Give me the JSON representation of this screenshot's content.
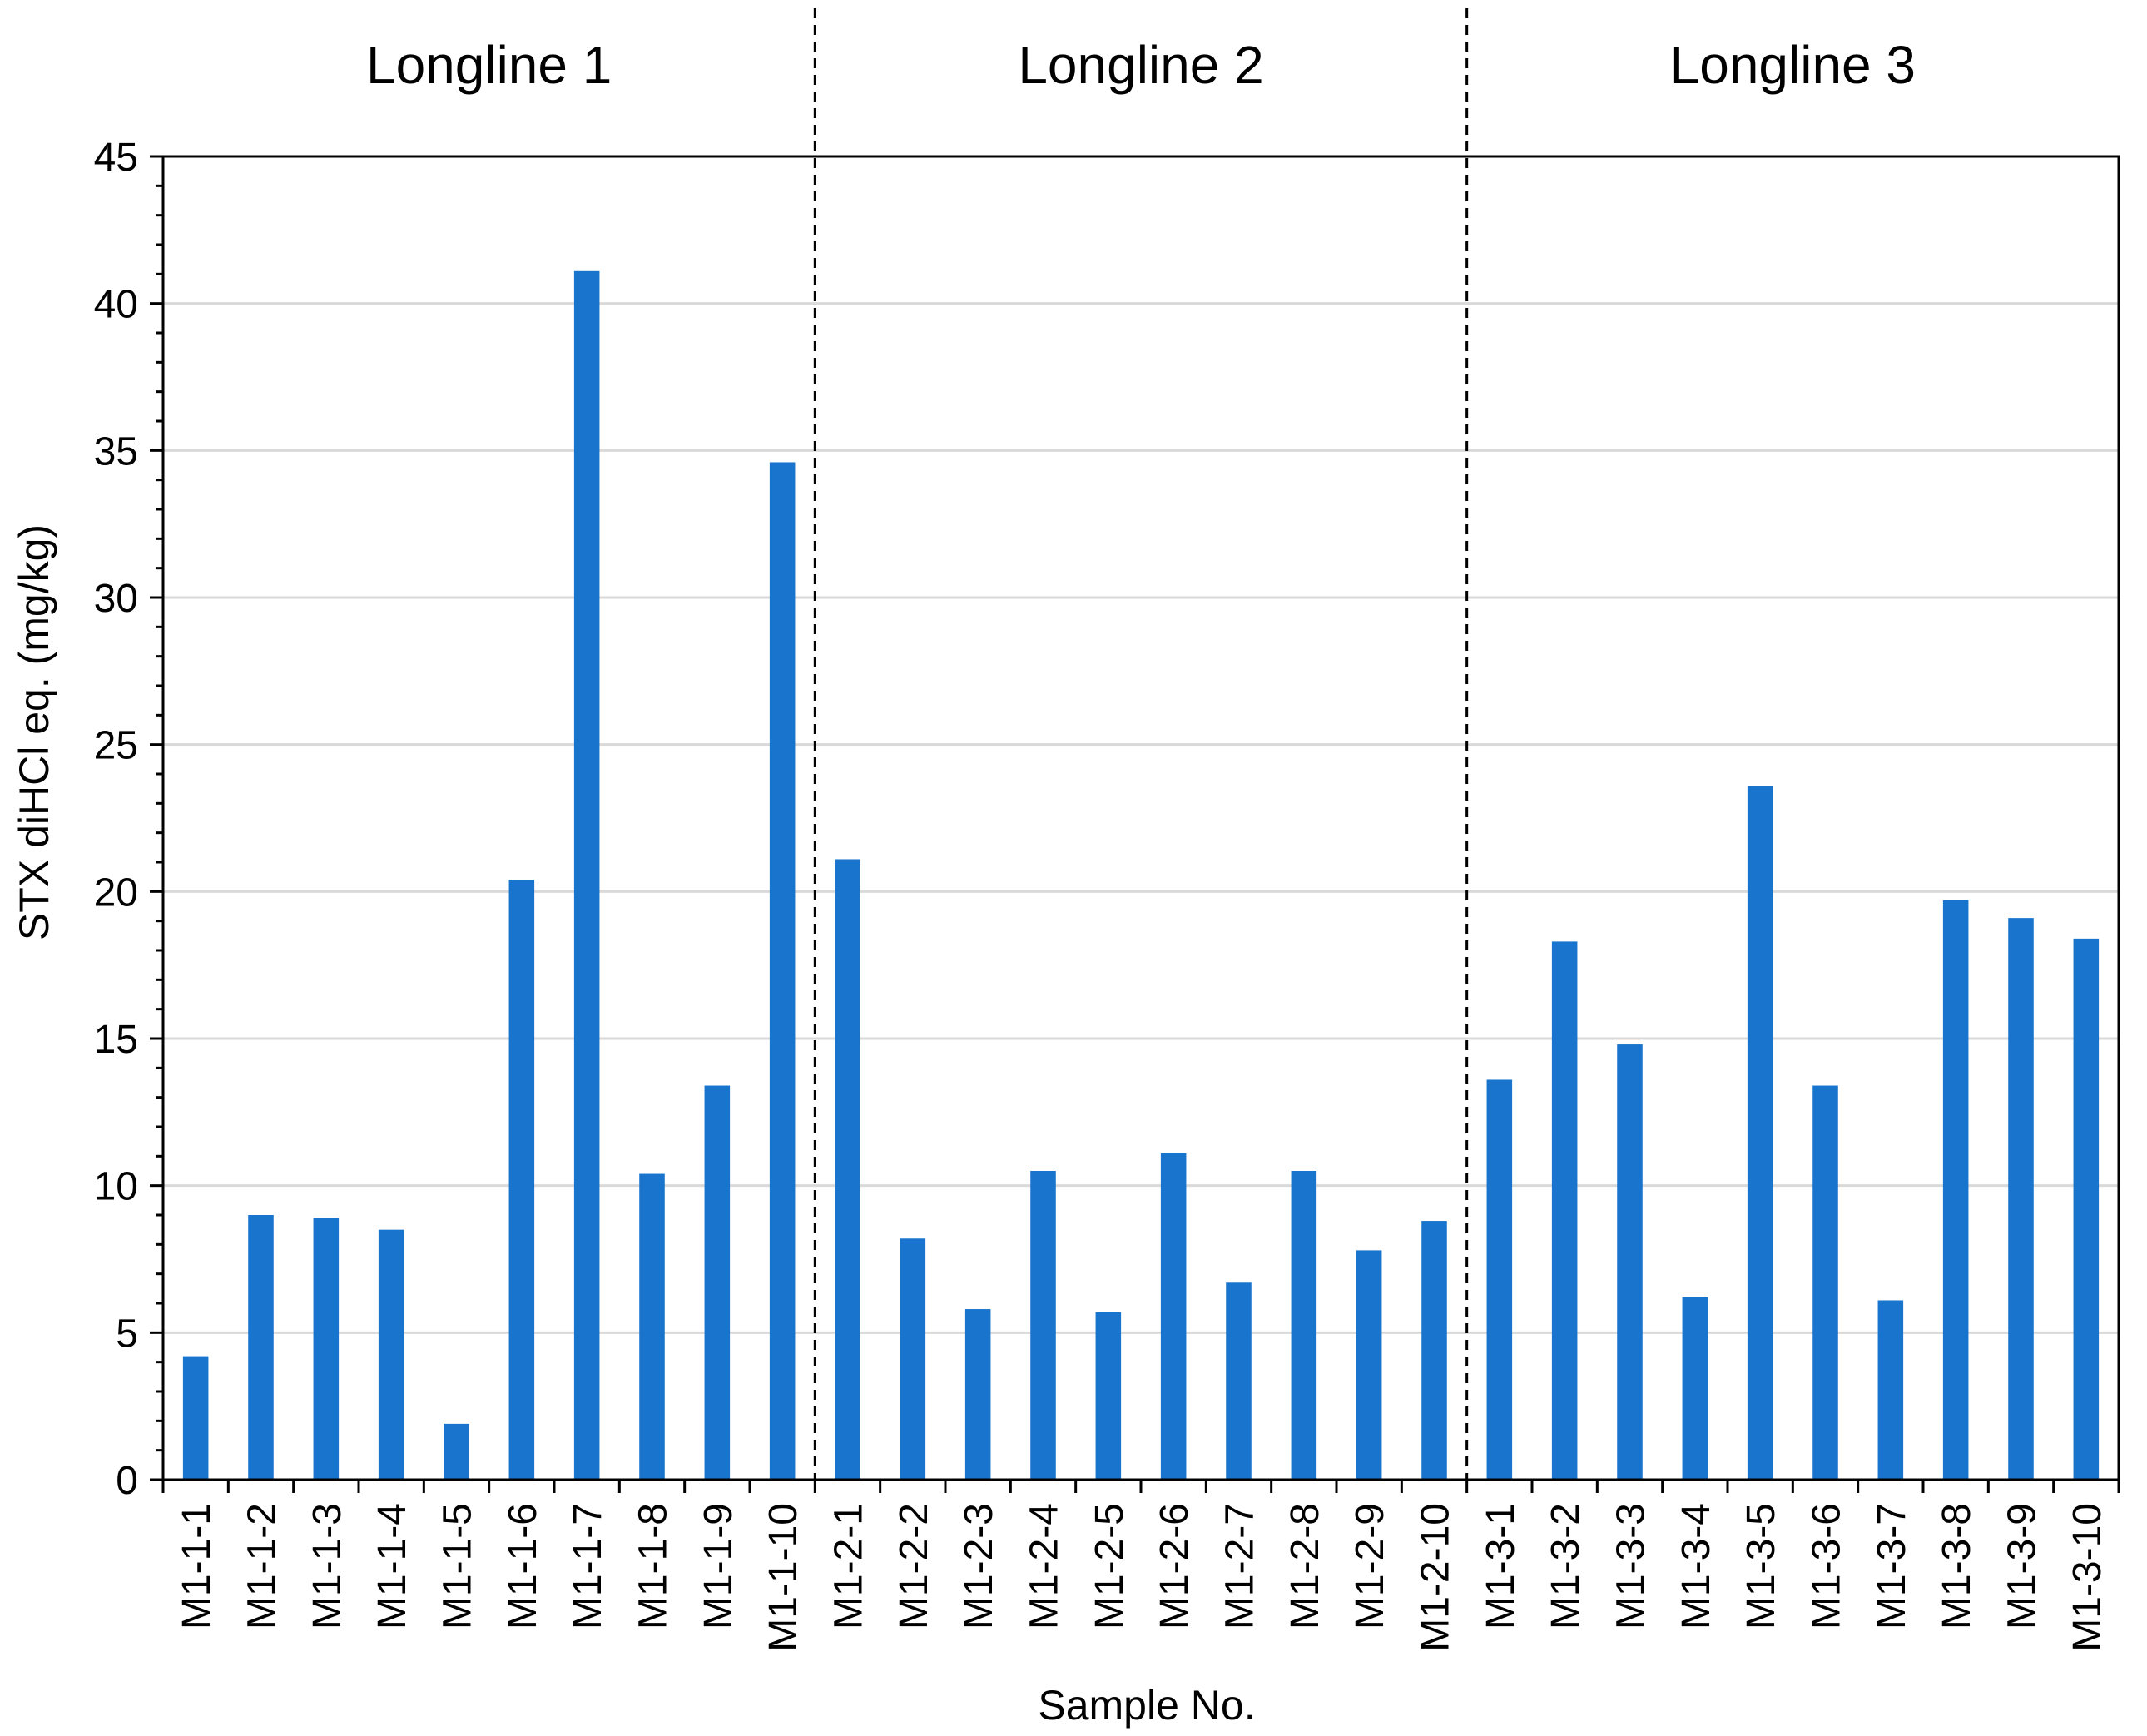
{
  "chart_data": {
    "type": "bar",
    "title": "",
    "xlabel": "Sample No.",
    "ylabel": "STX diHCl eq. (mg/kg)",
    "ylim": [
      0,
      45
    ],
    "yticks": [
      0,
      5,
      10,
      15,
      20,
      25,
      30,
      35,
      40,
      45
    ],
    "grid": true,
    "legend": "none",
    "bar_color": "#1874CD",
    "groups": [
      {
        "label": "Longline 1",
        "start": 0,
        "end": 9
      },
      {
        "label": "Longline 2",
        "start": 10,
        "end": 19
      },
      {
        "label": "Longline 3",
        "start": 20,
        "end": 29
      }
    ],
    "categories": [
      "M1-1-1",
      "M1-1-2",
      "M1-1-3",
      "M1-1-4",
      "M1-1-5",
      "M1-1-6",
      "M1-1-7",
      "M1-1-8",
      "M1-1-9",
      "M1-1-10",
      "M1-2-1",
      "M1-2-2",
      "M1-2-3",
      "M1-2-4",
      "M1-2-5",
      "M1-2-6",
      "M1-2-7",
      "M1-2-8",
      "M1-2-9",
      "M1-2-10",
      "M1-3-1",
      "M1-3-2",
      "M1-3-3",
      "M1-3-4",
      "M1-3-5",
      "M1-3-6",
      "M1-3-7",
      "M1-3-8",
      "M1-3-9",
      "M1-3-10"
    ],
    "values": [
      4.2,
      9.0,
      8.9,
      8.5,
      1.9,
      20.4,
      41.1,
      10.4,
      13.4,
      34.6,
      21.1,
      8.2,
      5.8,
      10.5,
      5.7,
      11.1,
      6.7,
      10.5,
      7.8,
      8.8,
      13.6,
      18.3,
      14.8,
      6.2,
      23.6,
      13.4,
      6.1,
      19.7,
      19.1,
      18.4
    ]
  }
}
